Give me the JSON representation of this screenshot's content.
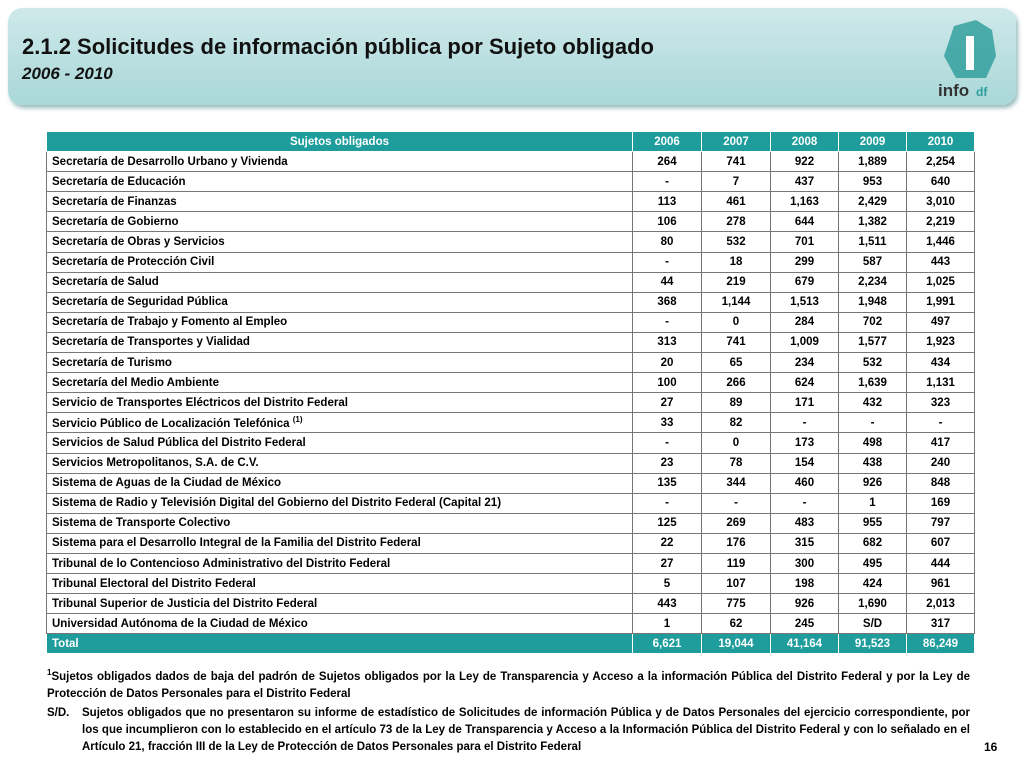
{
  "header": {
    "title": "2.1.2 Solicitudes de información pública por Sujeto obligado",
    "subtitle": "2006 - 2010",
    "logo": "info",
    "logo_suffix": "df"
  },
  "table": {
    "columns": [
      "Sujetos obligados",
      "2006",
      "2007",
      "2008",
      "2009",
      "2010"
    ],
    "rows": [
      [
        "Secretaría de Desarrollo Urbano y Vivienda",
        "264",
        "741",
        "922",
        "1,889",
        "2,254"
      ],
      [
        "Secretaría de Educación",
        "-",
        "7",
        "437",
        "953",
        "640"
      ],
      [
        "Secretaría de Finanzas",
        "113",
        "461",
        "1,163",
        "2,429",
        "3,010"
      ],
      [
        "Secretaría de Gobierno",
        "106",
        "278",
        "644",
        "1,382",
        "2,219"
      ],
      [
        "Secretaría de Obras y Servicios",
        "80",
        "532",
        "701",
        "1,511",
        "1,446"
      ],
      [
        "Secretaría de Protección Civil",
        "-",
        "18",
        "299",
        "587",
        "443"
      ],
      [
        "Secretaría de Salud",
        "44",
        "219",
        "679",
        "2,234",
        "1,025"
      ],
      [
        "Secretaría de Seguridad Pública",
        "368",
        "1,144",
        "1,513",
        "1,948",
        "1,991"
      ],
      [
        "Secretaría de Trabajo y Fomento al Empleo",
        "-",
        "0",
        "284",
        "702",
        "497"
      ],
      [
        "Secretaría de Transportes y Vialidad",
        "313",
        "741",
        "1,009",
        "1,577",
        "1,923"
      ],
      [
        "Secretaría de Turismo",
        "20",
        "65",
        "234",
        "532",
        "434"
      ],
      [
        "Secretaría del Medio Ambiente",
        "100",
        "266",
        "624",
        "1,639",
        "1,131"
      ],
      [
        "Servicio de Transportes Eléctricos del Distrito Federal",
        "27",
        "89",
        "171",
        "432",
        "323"
      ],
      [
        "Servicio Público de Localización Telefónica",
        "33",
        "82",
        "-",
        "-",
        "-"
      ],
      [
        "Servicios de Salud Pública del Distrito Federal",
        "-",
        "0",
        "173",
        "498",
        "417"
      ],
      [
        "Servicios Metropolitanos, S.A. de C.V.",
        "23",
        "78",
        "154",
        "438",
        "240"
      ],
      [
        "Sistema de Aguas de la Ciudad de México",
        "135",
        "344",
        "460",
        "926",
        "848"
      ],
      [
        "Sistema de Radio y Televisión Digital del Gobierno del Distrito Federal (Capital 21)",
        "-",
        "-",
        "-",
        "1",
        "169"
      ],
      [
        "Sistema de Transporte Colectivo",
        "125",
        "269",
        "483",
        "955",
        "797"
      ],
      [
        "Sistema para el Desarrollo Integral de la Familia del Distrito Federal",
        "22",
        "176",
        "315",
        "682",
        "607"
      ],
      [
        "Tribunal de lo Contencioso Administrativo del Distrito Federal",
        "27",
        "119",
        "300",
        "495",
        "444"
      ],
      [
        "Tribunal Electoral del Distrito Federal",
        "5",
        "107",
        "198",
        "424",
        "961"
      ],
      [
        "Tribunal Superior de Justicia del Distrito Federal",
        "443",
        "775",
        "926",
        "1,690",
        "2,013"
      ],
      [
        "Universidad Autónoma de la Ciudad de México",
        "1",
        "62",
        "245",
        "S/D",
        "317"
      ]
    ],
    "row_note": {
      "row": 13,
      "mark": "(1)"
    },
    "total": [
      "Total",
      "6,621",
      "19,044",
      "41,164",
      "91,523",
      "86,249"
    ]
  },
  "footnotes": [
    {
      "mark": "1",
      "text": "Sujetos obligados dados de baja del padrón de Sujetos obligados por la Ley de Transparencia y Acceso a la información Pública del Distrito Federal y por la Ley de Protección de Datos Personales para el Distrito Federal"
    },
    {
      "mark": "S/D.",
      "text": "Sujetos obligados que no presentaron su informe de estadístico de Solicitudes de información Pública y de Datos Personales del ejercicio correspondiente, por los que incumplieron con lo establecido en el artículo 73 de la Ley de Transparencia y Acceso a la Información Pública del Distrito Federal y con lo señalado en el Artículo 21, fracción III de la Ley de Protección de Datos Personales para el Distrito Federal"
    }
  ],
  "page_number": "16"
}
